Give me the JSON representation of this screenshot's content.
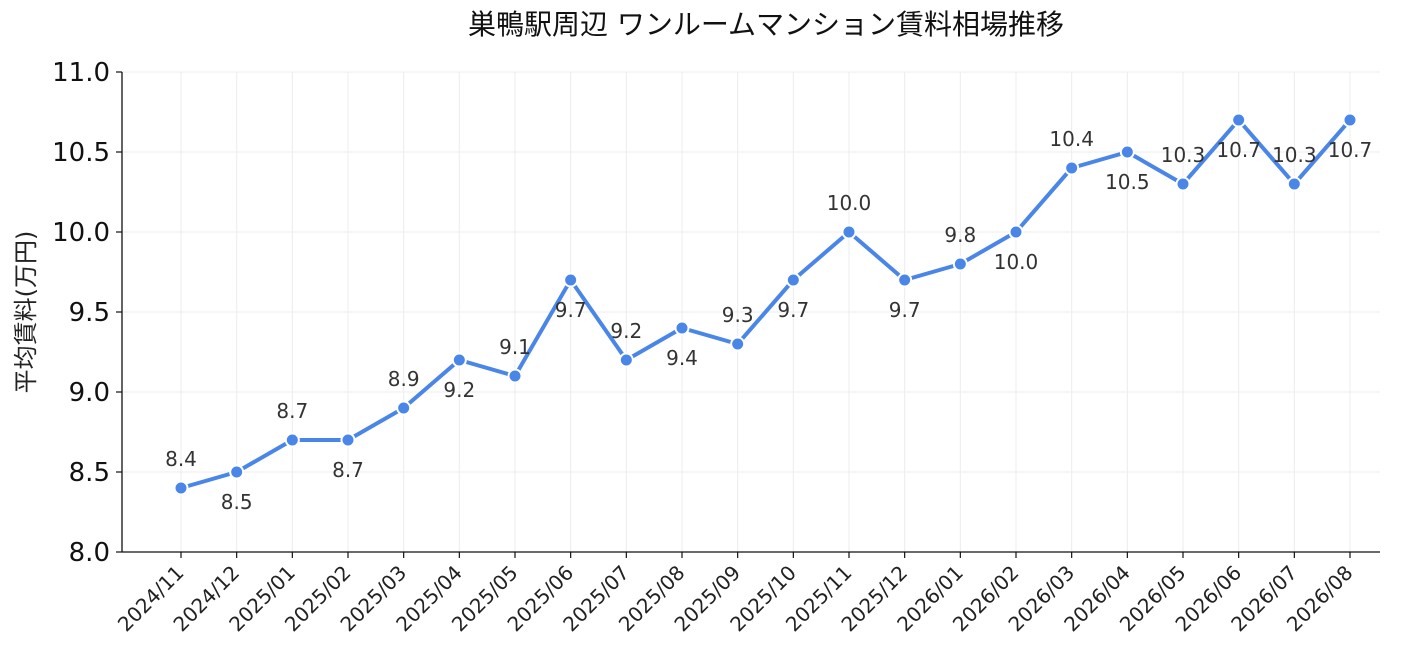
{
  "chart_data": {
    "type": "line",
    "title": "巣鴨駅周辺 ワンルームマンション賃料相場推移",
    "xlabel": "",
    "ylabel": "平均賃料(万円)",
    "ylim": [
      8.0,
      11.0
    ],
    "yticks": [
      "8.0",
      "8.5",
      "9.0",
      "9.5",
      "10.0",
      "10.5",
      "11.0"
    ],
    "grid": true,
    "legend": "none",
    "categories": [
      "2024/11",
      "2024/12",
      "2025/01",
      "2025/02",
      "2025/03",
      "2025/04",
      "2025/05",
      "2025/06",
      "2025/07",
      "2025/08",
      "2025/09",
      "2025/10",
      "2025/11",
      "2025/12",
      "2026/01",
      "2026/02",
      "2026/03",
      "2026/04",
      "2026/05",
      "2026/06",
      "2026/07",
      "2026/08"
    ],
    "values": [
      8.4,
      8.5,
      8.7,
      8.7,
      8.9,
      9.2,
      9.1,
      9.7,
      9.2,
      9.4,
      9.3,
      9.7,
      10.0,
      9.7,
      9.8,
      10.0,
      10.4,
      10.5,
      10.3,
      10.7,
      10.3,
      10.7
    ],
    "data_labels": [
      "8.4",
      "8.5",
      "8.7",
      "8.7",
      "8.9",
      "9.2",
      "9.1",
      "9.7",
      "9.2",
      "9.4",
      "9.3",
      "9.7",
      "10.0",
      "9.7",
      "9.8",
      "10.0",
      "10.4",
      "10.5",
      "10.3",
      "10.7",
      "10.3",
      "10.7"
    ],
    "label_positions": [
      "above",
      "below",
      "above",
      "below",
      "above",
      "below",
      "above",
      "below",
      "above",
      "below",
      "above",
      "below",
      "above",
      "below",
      "above",
      "below",
      "above",
      "below",
      "above",
      "below",
      "above",
      "below"
    ],
    "color": "#4a86e8"
  }
}
